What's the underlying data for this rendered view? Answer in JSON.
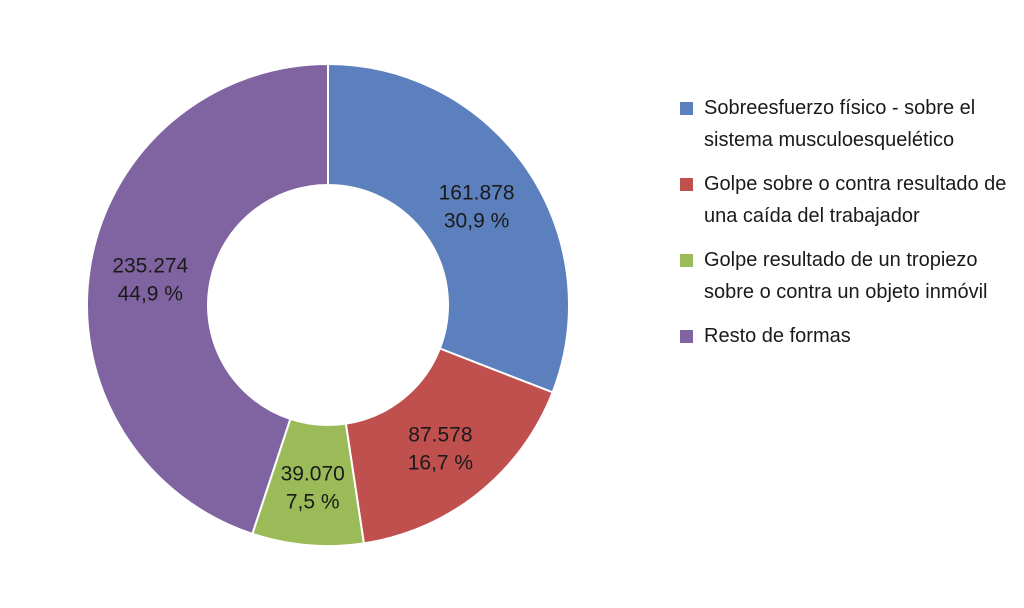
{
  "chart_data": {
    "type": "pie",
    "donut": true,
    "legend_position": "right",
    "series": [
      {
        "name": "Sobreesfuerzo  físico - sobre el sistema musculoesquelético",
        "value": 161878,
        "value_label": "161.878",
        "percent_label": "30,9 %",
        "color": "#5b80bd"
      },
      {
        "name": "Golpe sobre o contra resultado de una caída del trabajador",
        "value": 87578,
        "value_label": "87.578",
        "percent_label": "16,7 %",
        "color": "#bf504d"
      },
      {
        "name": "Golpe resultado de un tropiezo sobre o contra un objeto inmóvil",
        "value": 39070,
        "value_label": "39.070",
        "percent_label": "7,5 %",
        "color": "#9bbb59"
      },
      {
        "name": "Resto de formas",
        "value": 235274,
        "value_label": "235.274",
        "percent_label": "44,9 %",
        "color": "#8064a2"
      }
    ]
  }
}
